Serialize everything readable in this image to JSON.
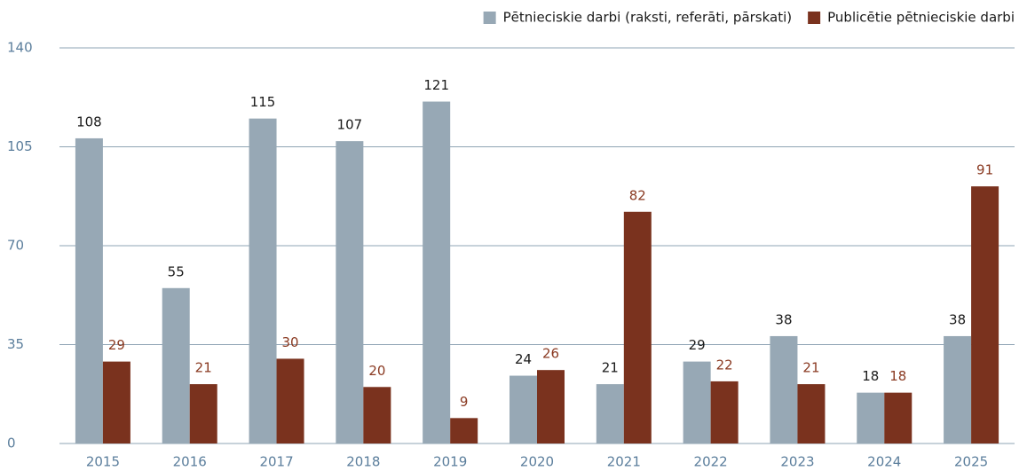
{
  "chart_data": {
    "type": "bar",
    "categories": [
      "2015",
      "2016",
      "2017",
      "2018",
      "2019",
      "2020",
      "2021",
      "2022",
      "2023",
      "2024",
      "2025"
    ],
    "series": [
      {
        "name": "Pētnieciskie darbi (raksti, referāti, pārskati)",
        "color": "#97a8b5",
        "label_color": "#1a1a1a",
        "values": [
          108,
          55,
          115,
          107,
          121,
          24,
          21,
          29,
          38,
          18,
          38
        ]
      },
      {
        "name": "Publicētie pētnieciskie darbi",
        "color": "#7a321e",
        "label_color": "#8a3a22",
        "values": [
          29,
          21,
          30,
          20,
          9,
          26,
          82,
          22,
          21,
          18,
          91
        ]
      }
    ],
    "ylim": [
      0,
      140
    ],
    "yticks": [
      0,
      35,
      70,
      105,
      140
    ],
    "grid": true,
    "legend": "top-right"
  }
}
